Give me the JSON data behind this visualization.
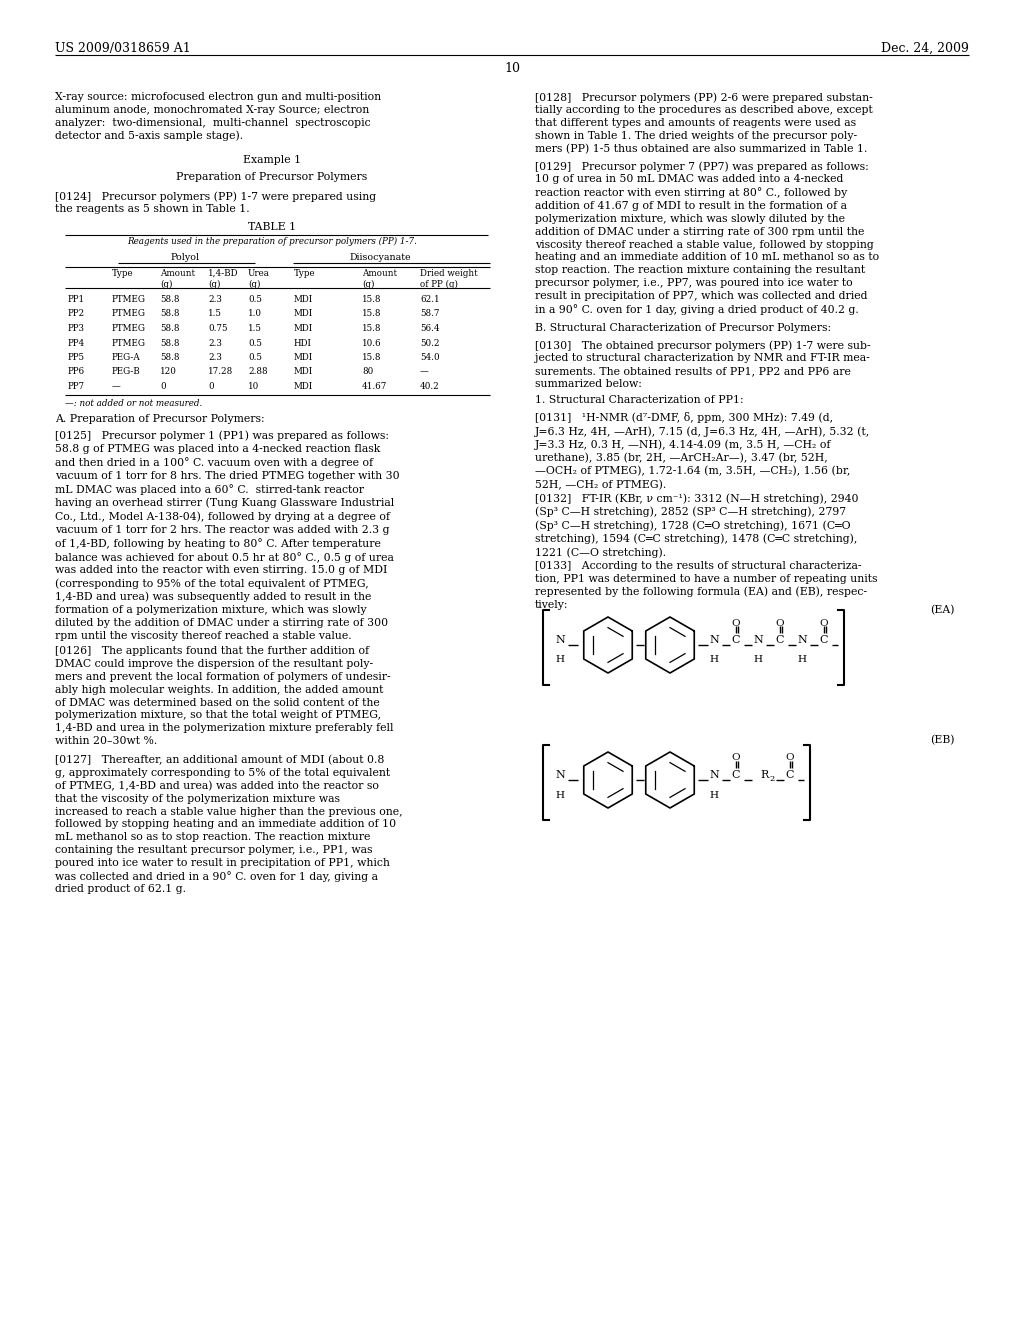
{
  "bg_color": "#ffffff",
  "header_left": "US 2009/0318659 A1",
  "header_right": "Dec. 24, 2009",
  "page_number": "10"
}
